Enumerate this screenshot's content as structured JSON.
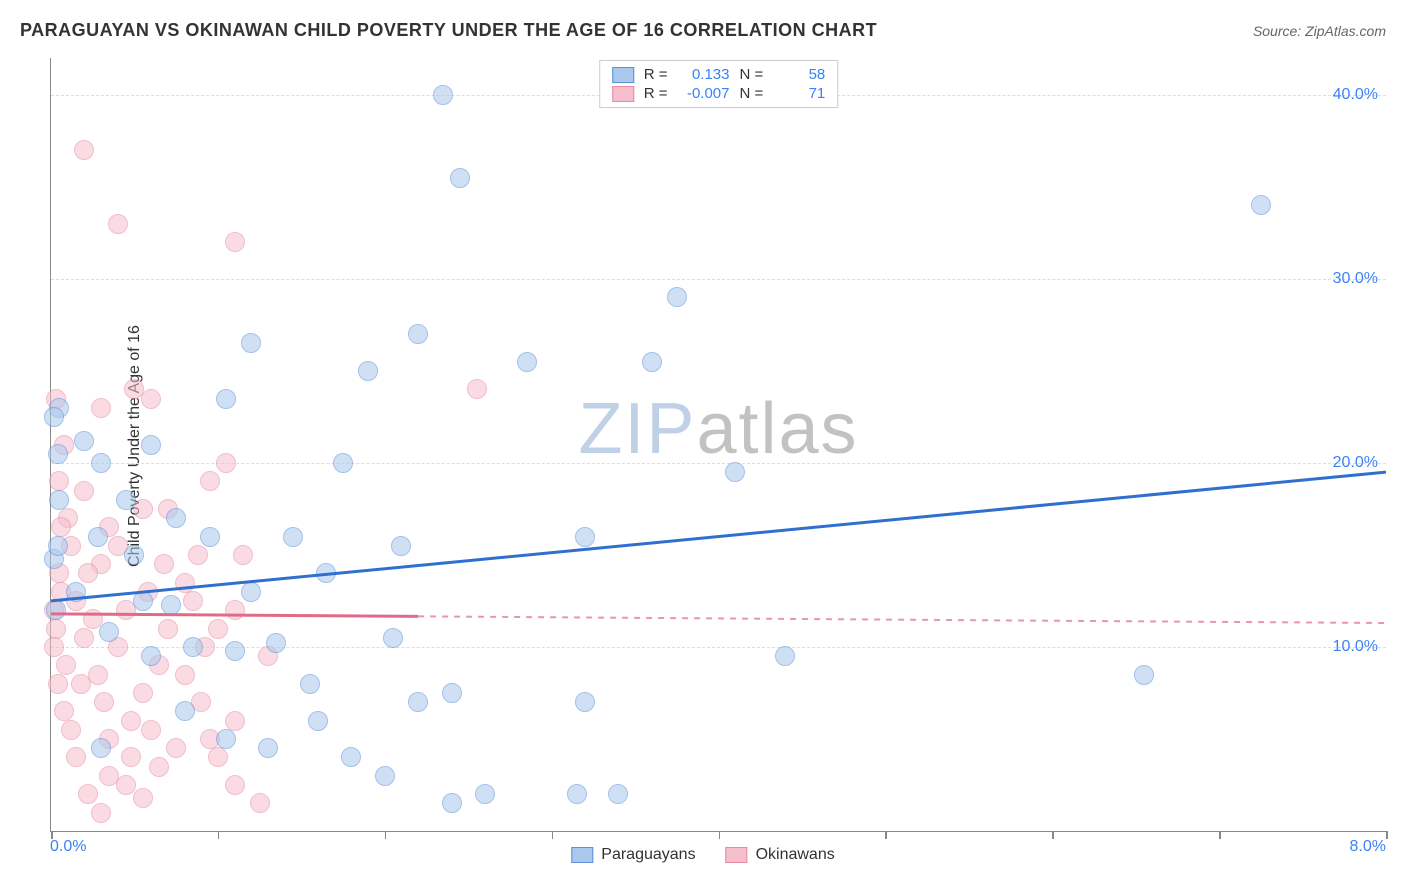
{
  "title": "PARAGUAYAN VS OKINAWAN CHILD POVERTY UNDER THE AGE OF 16 CORRELATION CHART",
  "source": "Source: ZipAtlas.com",
  "watermark": {
    "part1": "ZIP",
    "part2": "atlas"
  },
  "chart": {
    "type": "scatter",
    "ylabel": "Child Poverty Under the Age of 16",
    "background_color": "#ffffff",
    "grid_color": "#dddddd",
    "axis_color": "#888888",
    "xlim": [
      0,
      8
    ],
    "ylim": [
      0,
      42
    ],
    "x_tick_positions": [
      0,
      1,
      2,
      3,
      4,
      5,
      6,
      7,
      8
    ],
    "x_label_min": "0.0%",
    "x_label_max": "8.0%",
    "y_gridlines": [
      10,
      20,
      30,
      40
    ],
    "y_tick_labels": [
      "10.0%",
      "20.0%",
      "30.0%",
      "40.0%"
    ],
    "y_label_color": "#3b82f6",
    "label_fontsize": 16,
    "title_fontsize": 18,
    "marker_radius": 10,
    "marker_opacity": 0.55,
    "series": [
      {
        "name": "Paraguayans",
        "fill_color": "#a9c8ec",
        "stroke_color": "#5b8fd6",
        "line_color": "#2f6fd0",
        "r_value": "0.133",
        "n_value": "58",
        "trend": {
          "x1": 0.0,
          "y1": 12.5,
          "x2": 8.0,
          "y2": 19.5,
          "solid_until_x": 8.0
        },
        "points": [
          [
            0.02,
            14.8
          ],
          [
            0.04,
            20.5
          ],
          [
            0.05,
            18.0
          ],
          [
            0.03,
            12.0
          ],
          [
            0.05,
            23.0
          ],
          [
            0.2,
            21.2
          ],
          [
            0.15,
            13.0
          ],
          [
            0.28,
            16.0
          ],
          [
            0.3,
            20.0
          ],
          [
            0.45,
            18.0
          ],
          [
            0.55,
            12.5
          ],
          [
            0.75,
            17.0
          ],
          [
            0.72,
            12.3
          ],
          [
            0.95,
            16.0
          ],
          [
            1.05,
            23.5
          ],
          [
            0.6,
            9.5
          ],
          [
            0.85,
            10.0
          ],
          [
            1.1,
            9.8
          ],
          [
            1.35,
            10.2
          ],
          [
            1.55,
            8.0
          ],
          [
            1.2,
            13.0
          ],
          [
            1.45,
            16.0
          ],
          [
            1.65,
            14.0
          ],
          [
            1.75,
            20.0
          ],
          [
            1.6,
            6.0
          ],
          [
            1.05,
            5.0
          ],
          [
            1.3,
            4.5
          ],
          [
            1.8,
            4.0
          ],
          [
            2.0,
            3.0
          ],
          [
            2.2,
            7.0
          ],
          [
            2.4,
            7.5
          ],
          [
            2.05,
            10.5
          ],
          [
            2.1,
            15.5
          ],
          [
            2.4,
            1.5
          ],
          [
            2.6,
            2.0
          ],
          [
            2.2,
            27.0
          ],
          [
            2.35,
            40.0
          ],
          [
            2.45,
            35.5
          ],
          [
            2.85,
            25.5
          ],
          [
            3.2,
            16.0
          ],
          [
            3.15,
            2.0
          ],
          [
            3.4,
            2.0
          ],
          [
            3.2,
            7.0
          ],
          [
            3.75,
            29.0
          ],
          [
            4.1,
            19.5
          ],
          [
            4.4,
            9.5
          ],
          [
            6.55,
            8.5
          ],
          [
            1.2,
            26.5
          ],
          [
            1.9,
            25.0
          ],
          [
            3.6,
            25.5
          ],
          [
            0.04,
            15.5
          ],
          [
            0.35,
            10.8
          ],
          [
            0.5,
            15.0
          ],
          [
            0.8,
            6.5
          ],
          [
            0.3,
            4.5
          ],
          [
            7.25,
            34.0
          ],
          [
            0.02,
            22.5
          ],
          [
            0.6,
            21.0
          ]
        ]
      },
      {
        "name": "Okinawans",
        "fill_color": "#f6bfcd",
        "stroke_color": "#e48aa2",
        "line_color": "#e06a8a",
        "r_value": "-0.007",
        "n_value": "71",
        "trend": {
          "x1": 0.0,
          "y1": 11.8,
          "x2": 8.0,
          "y2": 11.3,
          "solid_until_x": 2.2
        },
        "points": [
          [
            0.03,
            11.0
          ],
          [
            0.06,
            13.0
          ],
          [
            0.09,
            9.0
          ],
          [
            0.05,
            14.0
          ],
          [
            0.02,
            12.0
          ],
          [
            0.1,
            17.0
          ],
          [
            0.2,
            18.5
          ],
          [
            0.25,
            11.5
          ],
          [
            0.18,
            8.0
          ],
          [
            0.08,
            6.5
          ],
          [
            0.3,
            14.5
          ],
          [
            0.35,
            16.5
          ],
          [
            0.45,
            12.0
          ],
          [
            0.4,
            10.0
          ],
          [
            0.55,
            7.5
          ],
          [
            0.5,
            24.0
          ],
          [
            0.6,
            23.5
          ],
          [
            0.3,
            23.0
          ],
          [
            0.2,
            37.0
          ],
          [
            0.4,
            33.0
          ],
          [
            1.1,
            32.0
          ],
          [
            0.7,
            11.0
          ],
          [
            0.8,
            8.5
          ],
          [
            0.9,
            7.0
          ],
          [
            0.95,
            5.0
          ],
          [
            1.0,
            4.0
          ],
          [
            1.1,
            2.5
          ],
          [
            1.25,
            1.5
          ],
          [
            0.65,
            3.5
          ],
          [
            0.55,
            1.8
          ],
          [
            0.45,
            2.5
          ],
          [
            0.35,
            3.0
          ],
          [
            0.3,
            1.0
          ],
          [
            0.22,
            2.0
          ],
          [
            0.15,
            4.0
          ],
          [
            0.12,
            5.5
          ],
          [
            0.7,
            17.5
          ],
          [
            0.88,
            15.0
          ],
          [
            0.95,
            19.0
          ],
          [
            1.05,
            20.0
          ],
          [
            1.1,
            12.0
          ],
          [
            1.3,
            9.5
          ],
          [
            1.1,
            6.0
          ],
          [
            0.8,
            13.5
          ],
          [
            0.58,
            13.0
          ],
          [
            1.0,
            11.0
          ],
          [
            0.48,
            6.0
          ],
          [
            0.32,
            7.0
          ],
          [
            0.65,
            9.0
          ],
          [
            0.92,
            10.0
          ],
          [
            0.08,
            21.0
          ],
          [
            0.05,
            19.0
          ],
          [
            0.12,
            15.5
          ],
          [
            0.02,
            10.0
          ],
          [
            0.04,
            8.0
          ],
          [
            0.06,
            16.5
          ],
          [
            0.03,
            23.5
          ],
          [
            0.4,
            15.5
          ],
          [
            0.55,
            17.5
          ],
          [
            0.2,
            10.5
          ],
          [
            0.28,
            8.5
          ],
          [
            0.35,
            5.0
          ],
          [
            0.48,
            4.0
          ],
          [
            0.6,
            5.5
          ],
          [
            0.75,
            4.5
          ],
          [
            0.15,
            12.5
          ],
          [
            0.22,
            14.0
          ],
          [
            0.68,
            14.5
          ],
          [
            0.85,
            12.5
          ],
          [
            1.15,
            15.0
          ],
          [
            2.55,
            24.0
          ]
        ]
      }
    ]
  },
  "legend_bottom": [
    {
      "label": "Paraguayans",
      "fill": "#a9c8ec",
      "stroke": "#5b8fd6"
    },
    {
      "label": "Okinawans",
      "fill": "#f6bfcd",
      "stroke": "#e48aa2"
    }
  ]
}
